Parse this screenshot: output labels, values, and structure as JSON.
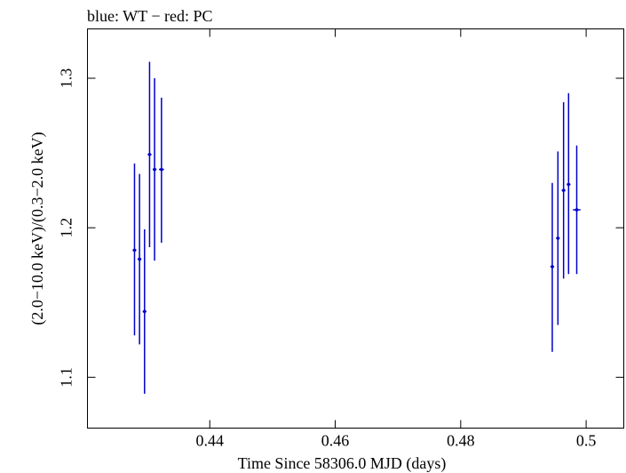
{
  "chart_data": {
    "type": "scatter",
    "title": "blue: WT − red: PC",
    "xlabel": "Time Since 58306.0 MJD (days)",
    "ylabel": "(2.0−10.0 keV)/(0.3−2.0 keV)",
    "xlim": [
      0.4205,
      0.506
    ],
    "ylim": [
      1.066,
      1.333
    ],
    "xticks": [
      0.44,
      0.46,
      0.48,
      0.5
    ],
    "xtick_labels": [
      "0.44",
      "0.46",
      "0.48",
      "0.5"
    ],
    "yticks": [
      1.1,
      1.2,
      1.3
    ],
    "ytick_labels": [
      "1.1",
      "1.2",
      "1.3"
    ],
    "grid": false,
    "series": [
      {
        "name": "WT",
        "color": "#0000cc",
        "points": [
          {
            "x": 0.428,
            "xerr": 0.0003,
            "y": 1.185,
            "ylo": 1.128,
            "yhi": 1.243
          },
          {
            "x": 0.4288,
            "xerr": 0.0003,
            "y": 1.179,
            "ylo": 1.122,
            "yhi": 1.236
          },
          {
            "x": 0.4296,
            "xerr": 0.0003,
            "y": 1.144,
            "ylo": 1.089,
            "yhi": 1.199
          },
          {
            "x": 0.4304,
            "xerr": 0.0003,
            "y": 1.249,
            "ylo": 1.187,
            "yhi": 1.311
          },
          {
            "x": 0.4312,
            "xerr": 0.0003,
            "y": 1.239,
            "ylo": 1.178,
            "yhi": 1.3
          },
          {
            "x": 0.4323,
            "xerr": 0.0004,
            "y": 1.239,
            "ylo": 1.19,
            "yhi": 1.287
          },
          {
            "x": 0.4946,
            "xerr": 0.0003,
            "y": 1.174,
            "ylo": 1.117,
            "yhi": 1.23
          },
          {
            "x": 0.4955,
            "xerr": 0.0003,
            "y": 1.193,
            "ylo": 1.135,
            "yhi": 1.251
          },
          {
            "x": 0.4964,
            "xerr": 0.0003,
            "y": 1.225,
            "ylo": 1.166,
            "yhi": 1.284
          },
          {
            "x": 0.4972,
            "xerr": 0.0003,
            "y": 1.229,
            "ylo": 1.169,
            "yhi": 1.29
          },
          {
            "x": 0.4985,
            "xerr": 0.0006,
            "y": 1.212,
            "ylo": 1.169,
            "yhi": 1.255
          }
        ]
      }
    ]
  }
}
